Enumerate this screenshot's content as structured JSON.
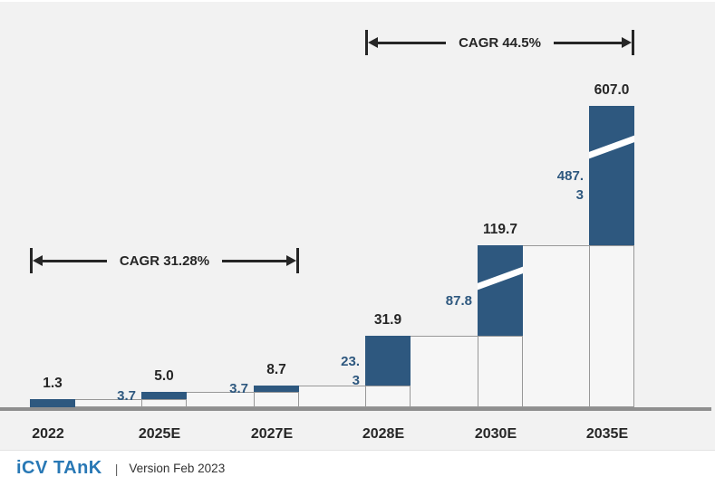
{
  "chart_data": {
    "type": "bar",
    "variant": "stepped-waterfall",
    "title": "",
    "xlabel": "",
    "ylabel": "",
    "legend": "none",
    "grid": false,
    "categories": [
      "2022",
      "2025E",
      "2027E",
      "2028E",
      "2030E",
      "2035E"
    ],
    "totals": [
      1.3,
      5.0,
      8.7,
      31.9,
      119.7,
      607.0
    ],
    "total_labels": [
      "1.3",
      "5.0",
      "8.7",
      "31.9",
      "119.7",
      "607.0"
    ],
    "increments": [
      1.3,
      3.7,
      3.7,
      23.3,
      87.8,
      487.3
    ],
    "increment_label_lines": [
      [],
      [
        "3.7"
      ],
      [
        "3.7"
      ],
      [
        "23.",
        "3"
      ],
      [
        "87.8"
      ],
      [
        "487.",
        "3"
      ]
    ],
    "axis_breaks": [
      false,
      false,
      false,
      false,
      true,
      true
    ],
    "annotations": [
      {
        "label": "CAGR 31.28%",
        "from_category": "2022",
        "to_category": "2027E"
      },
      {
        "label": "CAGR 44.5%",
        "from_category": "2028E",
        "to_category": "2035E"
      }
    ],
    "colors": {
      "increment_fill": "#2e587f",
      "carryover_fill": "#f6f6f6",
      "segment_outline": "#989898",
      "value_text": "#262626",
      "increment_text": "#2e587f",
      "annotation_color": "#262626",
      "axis_line": "#8f8f8f",
      "plot_background": "#f2f2f2"
    }
  },
  "footer": {
    "logo_text": "iCV TAnK",
    "separator": "|",
    "version_text": "Version Feb 2023",
    "logo_color": "#2878b5"
  }
}
